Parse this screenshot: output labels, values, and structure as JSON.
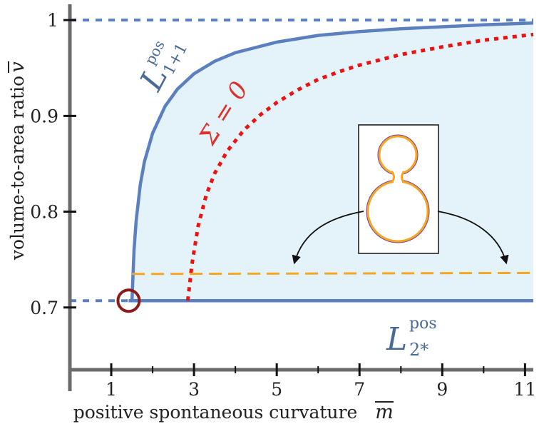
{
  "colors": {
    "background": "#ffffff",
    "axis": "#6b6b6b",
    "region_fill": "#e4f3fa",
    "boundary": "#5b7fbf",
    "sigma_zero": "#ee1111",
    "shape_line": "#f5a623",
    "marker": "#8b1a1a",
    "label_blue": "#4a6b96",
    "label_red": "#e0302a"
  },
  "chart_data": {
    "type": "line",
    "xlabel": "positive spontaneous curvature",
    "xlabel_symbol": "m",
    "ylabel": "volume-to-area ratio",
    "ylabel_symbol": "v",
    "xlim": [
      0,
      11.2
    ],
    "ylim": [
      0.635,
      1.015
    ],
    "x_ticks": [
      1,
      3,
      5,
      7,
      9,
      11
    ],
    "y_ticks": [
      0.7,
      0.8,
      0.9,
      1
    ],
    "y_tick_labels": [
      "0.7",
      "0.8",
      "0.9",
      "1"
    ],
    "x_minor_ticks": [
      2,
      4,
      6,
      8,
      10
    ],
    "grid": false,
    "reference_lines": [
      {
        "y": 1.0,
        "style": "dashed",
        "x_from": 0,
        "x_to": 11.2
      },
      {
        "y": 0.7071,
        "style": "dashed",
        "x_from": 0,
        "x_to": 1.42
      }
    ],
    "series": [
      {
        "name_main": "L",
        "name_sup": "pos",
        "name_sub": "1+1",
        "style": "solid",
        "x": [
          1.5,
          1.55,
          1.6,
          1.7,
          1.8,
          2.0,
          2.3,
          2.6,
          3.0,
          3.5,
          4.0,
          5.0,
          6.0,
          7.0,
          8.0,
          9.0,
          10.0,
          11.2
        ],
        "y": [
          0.7071,
          0.76,
          0.79,
          0.828,
          0.852,
          0.882,
          0.91,
          0.928,
          0.944,
          0.957,
          0.966,
          0.977,
          0.984,
          0.988,
          0.991,
          0.993,
          0.995,
          0.997
        ]
      },
      {
        "name_main": "L",
        "name_sup": "pos",
        "name_sub": "2*",
        "style": "solid",
        "x": [
          1.42,
          11.2
        ],
        "y": [
          0.7071,
          0.7071
        ]
      },
      {
        "name_main": "Σ = 0",
        "style": "dotted",
        "x": [
          2.85,
          2.95,
          3.1,
          3.3,
          3.5,
          3.8,
          4.2,
          4.6,
          5.0,
          5.5,
          6.0,
          6.5,
          7.0,
          8.0,
          9.0,
          10.0,
          11.2
        ],
        "y": [
          0.7071,
          0.745,
          0.785,
          0.818,
          0.84,
          0.863,
          0.885,
          0.901,
          0.914,
          0.927,
          0.938,
          0.946,
          0.953,
          0.964,
          0.972,
          0.979,
          0.985
        ]
      },
      {
        "name_main": "",
        "style": "dashed",
        "x": [
          1.5,
          11.2
        ],
        "y": [
          0.735,
          0.736
        ]
      }
    ],
    "marker": {
      "x": 1.42,
      "y": 0.7071,
      "shape": "circle"
    }
  }
}
